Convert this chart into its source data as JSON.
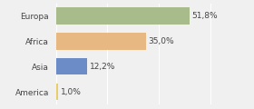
{
  "categories": [
    "Europa",
    "Africa",
    "Asia",
    "America"
  ],
  "values": [
    51.8,
    35.0,
    12.2,
    1.0
  ],
  "labels": [
    "51,8%",
    "35,0%",
    "12,2%",
    "1,0%"
  ],
  "bar_colors": [
    "#a8bb8a",
    "#e8b882",
    "#6b8cc7",
    "#e8ce6a"
  ],
  "background_color": "#f0f0f0",
  "xlim": [
    0,
    65
  ],
  "label_fontsize": 6.5,
  "category_fontsize": 6.5,
  "bar_height": 0.65
}
